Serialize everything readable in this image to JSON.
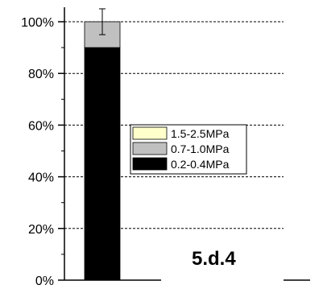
{
  "chart_data": {
    "type": "bar",
    "stacked": true,
    "y_format": "percent",
    "ylim": [
      0,
      100
    ],
    "yticks": [
      0,
      20,
      40,
      60,
      80,
      100
    ],
    "ytick_labels": [
      "0%",
      "20%",
      "40%",
      "60%",
      "80%",
      "100%"
    ],
    "grid": "horizontal dashed",
    "categories": [
      ""
    ],
    "series": [
      {
        "name": "0.2-0.4MPa",
        "values": [
          90
        ],
        "color": "#000000"
      },
      {
        "name": "0.7-1.0MPa",
        "values": [
          10
        ],
        "color": "#c0c0c0",
        "error": [
          5
        ]
      },
      {
        "name": "1.5-2.5MPa",
        "values": [
          0
        ],
        "color": "#ffffcc"
      }
    ],
    "legend_placement": "center",
    "legend_order": [
      "1.5-2.5MPa",
      "0.7-1.0MPa",
      "0.2-0.4MPa"
    ],
    "panel_label": "5.d.4"
  }
}
